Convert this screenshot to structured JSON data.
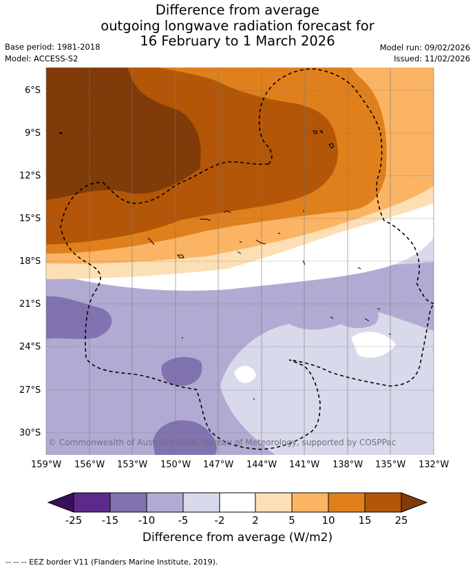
{
  "title": {
    "line1": "Difference from average",
    "line2": "outgoing longwave radiation forecast for",
    "line3": "16 February to 1 March 2026"
  },
  "meta": {
    "base_period": "Base period: 1981-2018",
    "model": "Model: ACCESS-S2",
    "model_run": "Model run: 09/02/2026",
    "issued": "Issued: 11/02/2026"
  },
  "axes": {
    "lat_labels": [
      "6°S",
      "9°S",
      "12°S",
      "15°S",
      "18°S",
      "21°S",
      "24°S",
      "27°S",
      "30°S"
    ],
    "lon_labels": [
      "159°W",
      "156°W",
      "153°W",
      "150°W",
      "147°W",
      "144°W",
      "141°W",
      "138°W",
      "135°W",
      "132°W"
    ]
  },
  "copyright": "© Commonwealth of Australia 2026, Bureau of Meteorology, supported by COSPPac",
  "colorbar": {
    "title": "Difference from average (W/m2)",
    "ticks": [
      "-25",
      "-15",
      "-10",
      "-5",
      "-2",
      "2",
      "5",
      "10",
      "15",
      "25"
    ],
    "colors": {
      "below_-25": "#3a0f5c",
      "-25_-15": "#5c2a8a",
      "-15_-10": "#8073b0",
      "-10_-5": "#b1abd3",
      "-5_-2": "#d9d9ec",
      "-2_2": "#ffffff",
      "2_5": "#fddfb5",
      "5_10": "#fbb464",
      "10_15": "#e0801c",
      "15_25": "#b35607",
      "above_25": "#7f3b08"
    }
  },
  "footnote": "-- -- -- EEZ border V11 (Flanders Marine Institute, 2019)."
}
